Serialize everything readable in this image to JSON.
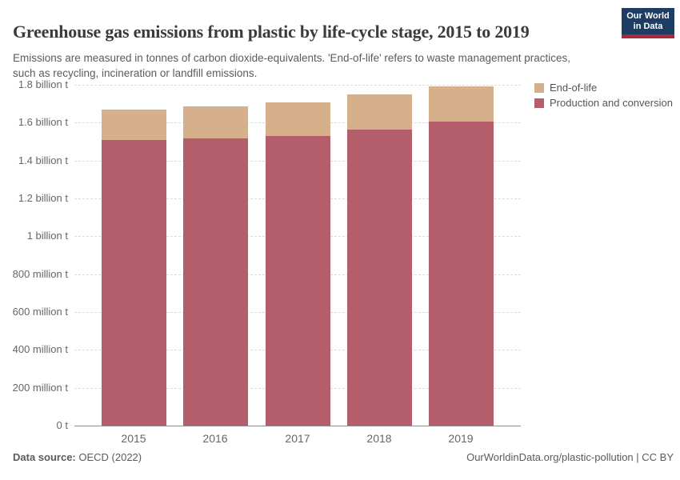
{
  "header": {
    "title": "Greenhouse gas emissions from plastic by life-cycle stage, 2015 to 2019",
    "subtitle": "Emissions are measured in tonnes of carbon dioxide-equivalents. 'End-of-life' refers to waste management practices, such as recycling, incineration or landfill emissions.",
    "logo": {
      "line1": "Our World",
      "line2": "in Data",
      "bg_color": "#1d3d63",
      "stripe_color": "#a62a3b"
    }
  },
  "chart_data": {
    "type": "bar",
    "stacked": true,
    "title": "Greenhouse gas emissions from plastic by life-cycle stage, 2015 to 2019",
    "categories": [
      "2015",
      "2016",
      "2017",
      "2018",
      "2019"
    ],
    "series": [
      {
        "name": "Production and conversion",
        "color": "#b35e6a",
        "values_million_t": [
          1510,
          1515,
          1530,
          1565,
          1605
        ]
      },
      {
        "name": "End-of-life",
        "color": "#d5b08a",
        "values_million_t": [
          160,
          172,
          177,
          183,
          185
        ]
      }
    ],
    "unit": "t",
    "ylim_million_t": [
      0,
      1800
    ],
    "y_ticks": [
      {
        "value": 0,
        "label": "0 t"
      },
      {
        "value": 200,
        "label": "200 million t"
      },
      {
        "value": 400,
        "label": "400 million t"
      },
      {
        "value": 600,
        "label": "600 million t"
      },
      {
        "value": 800,
        "label": "800 million t"
      },
      {
        "value": 1000,
        "label": "1 billion t"
      },
      {
        "value": 1200,
        "label": "1.2 billion t"
      },
      {
        "value": 1400,
        "label": "1.4 billion t"
      },
      {
        "value": 1600,
        "label": "1.6 billion t"
      },
      {
        "value": 1800,
        "label": "1.8 billion t"
      }
    ],
    "legend_position": "top-right",
    "legend_order": [
      "End-of-life",
      "Production and conversion"
    ],
    "grid": "dashed-horizontal"
  },
  "footer": {
    "datasource_label": "Data source:",
    "datasource_value": " OECD (2022)",
    "attribution": "OurWorldinData.org/plastic-pollution | CC BY"
  }
}
